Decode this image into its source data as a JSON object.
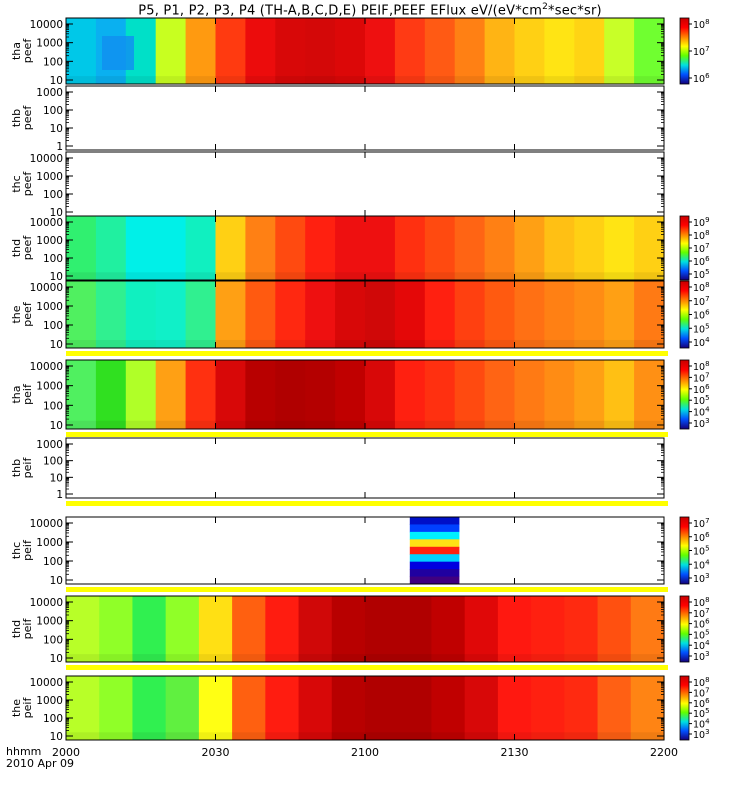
{
  "chart_data": {
    "type": "heatmap",
    "title": "P5, P1, P2, P3, P4 (TH-A,B,C,D,E) PEIF,PEEF EFlux eV/(eV*cm2*sec*sr)",
    "title_parts": [
      "P5, P1, P2, P3, P4 (TH-A,B,C,D,E) PEIF,PEEF EFlux eV/(eV*cm",
      "2",
      "*sec*sr)"
    ],
    "x_axis": {
      "ticks": [
        "2000",
        "2030",
        "2100",
        "2130",
        "2200"
      ],
      "label_top": "hhmm",
      "label_bottom": "2010 Apr 09"
    },
    "panels": [
      {
        "probe": "tha",
        "product": "peef",
        "has_data": true,
        "yticks": [
          "10",
          "100",
          "1000",
          "10000"
        ],
        "cbar": {
          "colors": [
            "#14007a",
            "#0050ff",
            "#00e0e0",
            "#60ff00",
            "#ffff00",
            "#ff8000",
            "#ff0000",
            "#c80000"
          ],
          "labels": [
            {
              "b": "10",
              "e": "6"
            },
            {
              "b": "10",
              "e": "7"
            },
            {
              "b": "10",
              "e": "8"
            }
          ]
        },
        "cols": [
          "#00c8e8",
          "#0ab0f0",
          "#00e0c8",
          "#c8ff20",
          "#ff9a10",
          "#ff3a10",
          "#ec0c0c",
          "#d80808",
          "#d40808",
          "#dc0808",
          "#ee1010",
          "#ff3a14",
          "#ff5a14",
          "#ff8014",
          "#ffb414",
          "#ffd014",
          "#ffe414",
          "#ffd414",
          "#c8ff28",
          "#70ff30"
        ],
        "flags": {
          "topsep": false,
          "botband": false
        }
      },
      {
        "probe": "thb",
        "product": "peef",
        "has_data": false,
        "yticks": [
          "1",
          "10",
          "100",
          "1000"
        ],
        "flags": {
          "topsep": false,
          "botband": false
        }
      },
      {
        "probe": "thc",
        "product": "peef",
        "has_data": false,
        "yticks": [
          "10",
          "100",
          "1000",
          "10000"
        ],
        "flags": {
          "topsep": false,
          "botband": false
        }
      },
      {
        "probe": "thd",
        "product": "peef",
        "has_data": true,
        "yticks": [
          "10",
          "100",
          "1000",
          "10000"
        ],
        "cbar": {
          "colors": [
            "#14007a",
            "#0050ff",
            "#00e0e0",
            "#60ff00",
            "#ffff00",
            "#ff8000",
            "#ff0000",
            "#c80000"
          ],
          "labels": [
            {
              "b": "10",
              "e": "5"
            },
            {
              "b": "10",
              "e": "6"
            },
            {
              "b": "10",
              "e": "7"
            },
            {
              "b": "10",
              "e": "8"
            },
            {
              "b": "10",
              "e": "9"
            }
          ]
        },
        "cols": [
          "#30f070",
          "#20f0a0",
          "#00f0e8",
          "#00f0e8",
          "#10f0c0",
          "#ffd014",
          "#ff8014",
          "#ff4a10",
          "#ff2010",
          "#ee1010",
          "#ee1010",
          "#ff3010",
          "#ff4a10",
          "#ff6414",
          "#ff8014",
          "#ffa014",
          "#ffc014",
          "#ffd014",
          "#ffe414",
          "#ffd014"
        ],
        "flags": {
          "topsep": false,
          "botband": false
        }
      },
      {
        "probe": "the",
        "product": "peef",
        "has_data": true,
        "yticks": [
          "10",
          "100",
          "1000",
          "10000"
        ],
        "cbar": {
          "colors": [
            "#14007a",
            "#0050ff",
            "#00e0e0",
            "#60ff00",
            "#ffff00",
            "#ff8000",
            "#ff0000",
            "#c80000"
          ],
          "labels": [
            {
              "b": "10",
              "e": "4"
            },
            {
              "b": "10",
              "e": "5"
            },
            {
              "b": "10",
              "e": "6"
            },
            {
              "b": "10",
              "e": "7"
            },
            {
              "b": "10",
              "e": "8"
            }
          ]
        },
        "cols": [
          "#50f060",
          "#30f090",
          "#10f0c0",
          "#10f0c8",
          "#30f090",
          "#ffa014",
          "#ff5a10",
          "#ff2810",
          "#ee1010",
          "#d80808",
          "#d00808",
          "#e40808",
          "#ff2010",
          "#ff4010",
          "#ff5a10",
          "#ff7014",
          "#ff8014",
          "#ff8c14",
          "#ffa014",
          "#ff7a14"
        ],
        "flags": {
          "topsep": false,
          "botband": true
        }
      },
      {
        "probe": "tha",
        "product": "peif",
        "has_data": true,
        "yticks": [
          "10",
          "100",
          "1000",
          "10000"
        ],
        "cbar": {
          "colors": [
            "#14007a",
            "#0050ff",
            "#00e0e0",
            "#60ff00",
            "#ffff00",
            "#ff8000",
            "#ff0000",
            "#c80000"
          ],
          "labels": [
            {
              "b": "10",
              "e": "3"
            },
            {
              "b": "10",
              "e": "4"
            },
            {
              "b": "10",
              "e": "5"
            },
            {
              "b": "10",
              "e": "6"
            },
            {
              "b": "10",
              "e": "7"
            },
            {
              "b": "10",
              "e": "8"
            }
          ]
        },
        "cols": [
          "#50f060",
          "#30e020",
          "#b0ff28",
          "#ffa014",
          "#ff3010",
          "#d80808",
          "#b80000",
          "#b00000",
          "#b40000",
          "#c00000",
          "#d80808",
          "#ff2010",
          "#ff3010",
          "#ff4a10",
          "#ff6414",
          "#ff7a14",
          "#ff8c14",
          "#ffa014",
          "#ffc014",
          "#ff9014"
        ],
        "flags": {
          "topsep": false,
          "botband": true
        }
      },
      {
        "probe": "thb",
        "product": "peif",
        "has_data": false,
        "yticks": [
          "1",
          "10",
          "100",
          "1000"
        ],
        "flags": {
          "topsep": false,
          "botband": true
        }
      },
      {
        "probe": "thc",
        "product": "peif",
        "has_data": true,
        "yticks": [
          "10",
          "100",
          "1000",
          "10000"
        ],
        "cbar": {
          "colors": [
            "#14007a",
            "#0050ff",
            "#00e0e0",
            "#60ff00",
            "#ffff00",
            "#ff8000",
            "#ff0000",
            "#c80000"
          ],
          "labels": [
            {
              "b": "10",
              "e": "3"
            },
            {
              "b": "10",
              "e": "4"
            },
            {
              "b": "10",
              "e": "5"
            },
            {
              "b": "10",
              "e": "6"
            },
            {
              "b": "10",
              "e": "7"
            }
          ]
        },
        "cols": null,
        "block": {
          "start_frac": 0.575,
          "end_frac": 0.658,
          "rows": [
            "#0010c8",
            "#0040ff",
            "#00f0ff",
            "#ffe014",
            "#ff2010",
            "#00d0ff",
            "#0000e0",
            "#2000a0",
            "#400080"
          ]
        },
        "flags": {
          "topsep": false,
          "botband": true
        }
      },
      {
        "probe": "thd",
        "product": "peif",
        "has_data": true,
        "yticks": [
          "10",
          "100",
          "1000",
          "10000"
        ],
        "cbar": {
          "colors": [
            "#14007a",
            "#0050ff",
            "#00e0e0",
            "#60ff00",
            "#ffff00",
            "#ff8000",
            "#ff0000",
            "#c80000"
          ],
          "labels": [
            {
              "b": "10",
              "e": "3"
            },
            {
              "b": "10",
              "e": "4"
            },
            {
              "b": "10",
              "e": "5"
            },
            {
              "b": "10",
              "e": "6"
            },
            {
              "b": "10",
              "e": "7"
            },
            {
              "b": "10",
              "e": "8"
            }
          ]
        },
        "cols": [
          "#b8ff28",
          "#90ff28",
          "#30f050",
          "#90ff28",
          "#ffe014",
          "#ff6010",
          "#ff1c10",
          "#d00808",
          "#b80000",
          "#b00000",
          "#b00000",
          "#c00000",
          "#e00808",
          "#ff1810",
          "#ff2010",
          "#ff2a10",
          "#ff5010",
          "#ff7a14"
        ],
        "flags": {
          "topsep": false,
          "botband": true
        }
      },
      {
        "probe": "the",
        "product": "peif",
        "has_data": true,
        "yticks": [
          "10",
          "100",
          "1000",
          "10000"
        ],
        "cbar": {
          "colors": [
            "#14007a",
            "#0050ff",
            "#00e0e0",
            "#60ff00",
            "#ffff00",
            "#ff8000",
            "#ff0000",
            "#c80000"
          ],
          "labels": [
            {
              "b": "10",
              "e": "3"
            },
            {
              "b": "10",
              "e": "4"
            },
            {
              "b": "10",
              "e": "5"
            },
            {
              "b": "10",
              "e": "6"
            },
            {
              "b": "10",
              "e": "7"
            },
            {
              "b": "10",
              "e": "8"
            }
          ]
        },
        "cols": [
          "#b8ff28",
          "#90ff28",
          "#30f050",
          "#60f040",
          "#ffff14",
          "#ff6010",
          "#ff1c10",
          "#d80808",
          "#b80000",
          "#b00000",
          "#b00000",
          "#c00000",
          "#d80808",
          "#ff1810",
          "#ff2010",
          "#ff2a10",
          "#ff6014",
          "#ff8414"
        ],
        "flags": {
          "topsep": false,
          "botband": false
        }
      }
    ]
  }
}
